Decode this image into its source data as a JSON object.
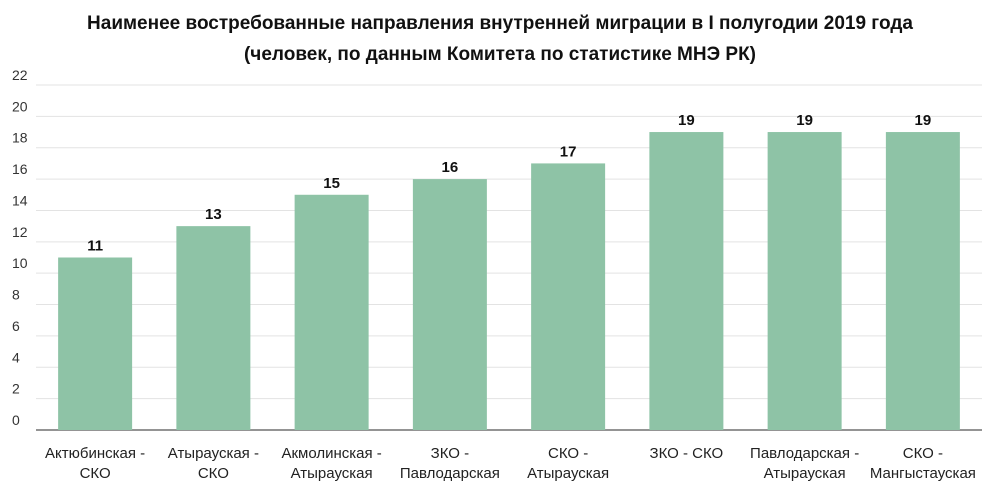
{
  "chart_data": {
    "type": "bar",
    "title": "Наименее востребованные направления внутренней миграции в I полугодии 2019 года",
    "subtitle": "(человек, по данным Комитета по статистике МНЭ РК)",
    "xlabel": "",
    "ylabel": "",
    "ylim": [
      0,
      22
    ],
    "yticks": [
      0,
      2,
      4,
      6,
      8,
      10,
      12,
      14,
      16,
      18,
      20,
      22
    ],
    "grid": true,
    "legend": "none",
    "bar_color": "#8ec3a6",
    "categories": [
      [
        "Актюбинская -",
        "СКО"
      ],
      [
        "Атырауская -",
        "СКО"
      ],
      [
        "Акмолинская -",
        "Атырауская"
      ],
      [
        "ЗКО -",
        "Павлодарская"
      ],
      [
        "СКО -",
        "Атырауская"
      ],
      [
        "ЗКО - СКО"
      ],
      [
        "Павлодарская -",
        "Атырауская"
      ],
      [
        "СКО -",
        "Мангыстауская"
      ]
    ],
    "values": [
      11,
      13,
      15,
      16,
      17,
      19,
      19,
      19
    ]
  }
}
